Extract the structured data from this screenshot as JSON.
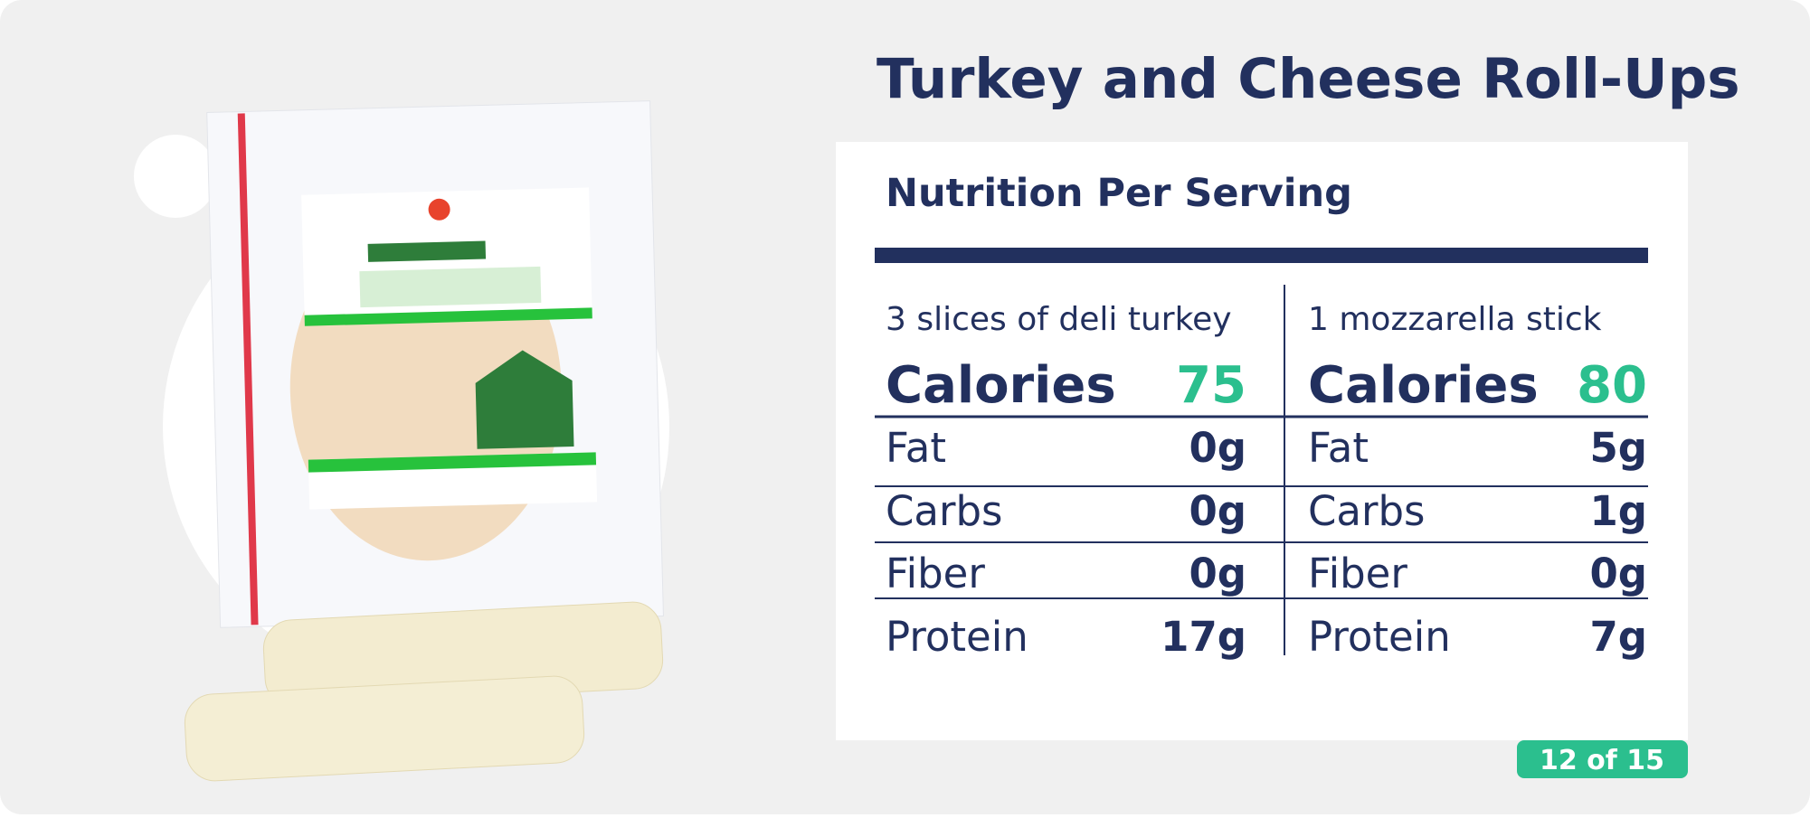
{
  "header": {
    "title": "Turkey and Cheese Roll-Ups"
  },
  "card": {
    "heading": "Nutrition Per Serving",
    "columns": [
      {
        "serving": "3 slices of deli turkey",
        "calories_label": "Calories",
        "calories": "75",
        "rows": [
          [
            "Fat",
            "0g"
          ],
          [
            "Carbs",
            "0g"
          ],
          [
            "Fiber",
            "0g"
          ],
          [
            "Protein",
            "17g"
          ]
        ]
      },
      {
        "serving": "1 mozzarella stick",
        "calories_label": "Calories",
        "calories": "80",
        "rows": [
          [
            "Fat",
            "5g"
          ],
          [
            "Carbs",
            "1g"
          ],
          [
            "Fiber",
            "0g"
          ],
          [
            "Protein",
            "7g"
          ]
        ]
      }
    ]
  },
  "footer": {
    "pager": "12 of 15"
  }
}
